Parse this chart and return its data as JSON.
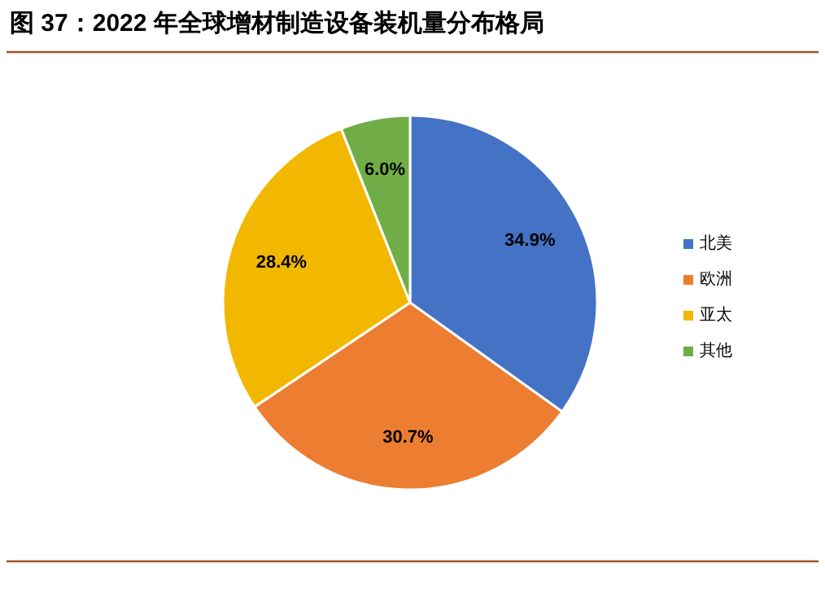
{
  "chart_data": {
    "type": "pie",
    "title": "图 37：2022 年全球增材制造设备装机量分布格局",
    "categories": [
      "北美",
      "欧洲",
      "亚太",
      "其他"
    ],
    "values": [
      34.9,
      30.7,
      28.4,
      6.0
    ],
    "value_labels": [
      "34.9%",
      "30.7%",
      "28.4%",
      "6.0%"
    ],
    "colors": [
      "#4472c4",
      "#ed7d31",
      "#f2b800",
      "#70ad47"
    ],
    "legend": "right"
  }
}
